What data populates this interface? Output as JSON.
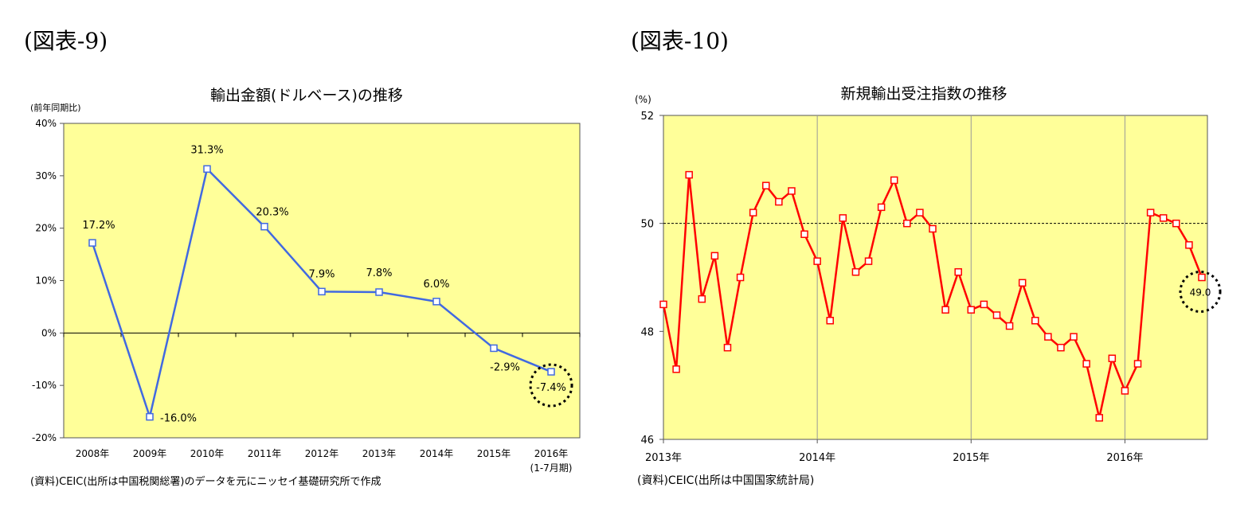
{
  "figures": {
    "left_label": "(図表-9)",
    "right_label": "(図表-10)"
  },
  "chart_data": [
    {
      "type": "line",
      "title": "輸出金額(ドルベース)の推移",
      "ylabel": "(前年同期比)",
      "ylim": [
        -20,
        40
      ],
      "yticks": [
        40,
        30,
        20,
        10,
        0,
        -10,
        -20
      ],
      "ytick_labels": [
        "40%",
        "30%",
        "20%",
        "10%",
        "0%",
        "-10%",
        "-20%"
      ],
      "categories": [
        "2008年",
        "2009年",
        "2010年",
        "2011年",
        "2012年",
        "2013年",
        "2014年",
        "2015年",
        "2016年"
      ],
      "category_sublabel": "(1-7月期)",
      "values": [
        17.2,
        -16.0,
        31.3,
        20.3,
        7.9,
        7.8,
        6.0,
        -2.9,
        -7.4
      ],
      "data_labels": [
        "17.2%",
        "-16.0%",
        "31.3%",
        "20.3%",
        "7.9%",
        "7.8%",
        "6.0%",
        "-2.9%",
        "-7.4%"
      ],
      "line_color": "#4169E1",
      "plot_bg": "#FFFF99",
      "highlight_index": 8,
      "grid": false,
      "source": "(資料)CEIC(出所は中国税関総署)のデータを元にニッセイ基礎研究所で作成"
    },
    {
      "type": "line",
      "title": "新規輸出受注指数の推移",
      "ylabel": "(%)",
      "ylim": [
        46,
        52
      ],
      "yticks": [
        52,
        50,
        48,
        46
      ],
      "ytick_labels": [
        "52",
        "50",
        "48",
        "46"
      ],
      "x_labels": [
        "2013年",
        "2014年",
        "2015年",
        "2016年"
      ],
      "start": "2013-01",
      "values": [
        48.5,
        47.3,
        50.9,
        48.6,
        49.4,
        47.7,
        49.0,
        50.2,
        50.7,
        50.4,
        50.6,
        49.8,
        49.3,
        48.2,
        50.1,
        49.1,
        49.3,
        50.3,
        50.8,
        50.0,
        50.2,
        49.9,
        48.4,
        49.1,
        48.4,
        48.5,
        48.3,
        48.1,
        48.9,
        48.2,
        47.9,
        47.7,
        47.9,
        47.4,
        46.4,
        47.5,
        46.9,
        47.4,
        50.2,
        50.1,
        50.0,
        49.6,
        49.0
      ],
      "reference_line": 50,
      "line_color": "#FF0000",
      "plot_bg": "#FFFF99",
      "grid": "vertical year lines",
      "highlight_label": "49.0",
      "source": "(資料)CEIC(出所は中国国家統計局)"
    }
  ]
}
